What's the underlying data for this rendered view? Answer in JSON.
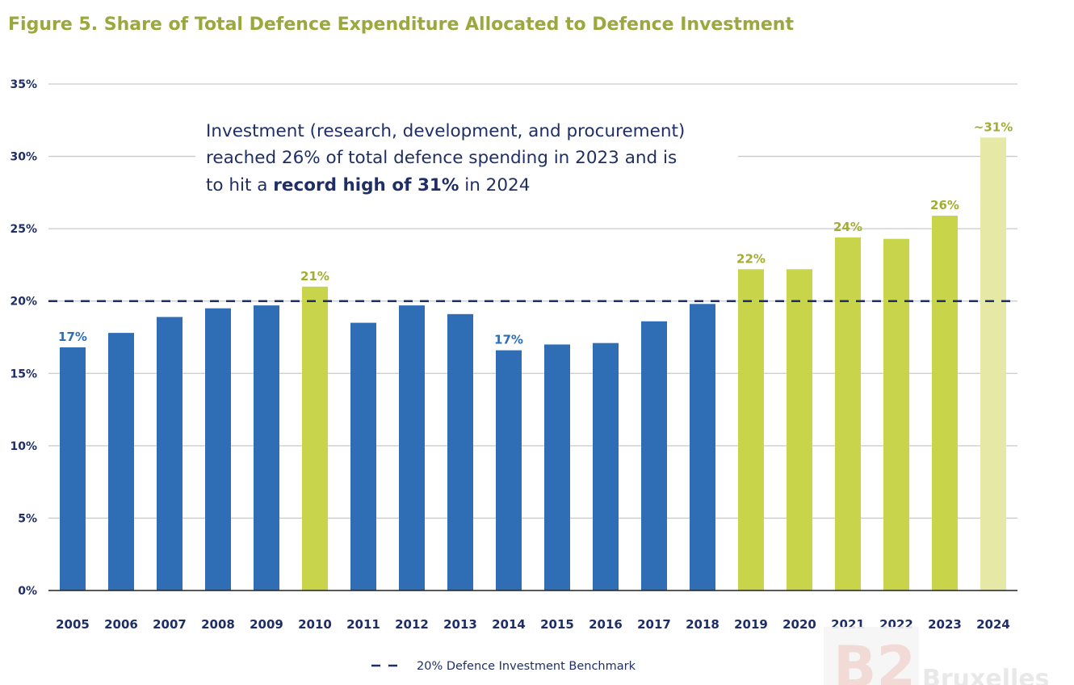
{
  "chart_data": {
    "type": "bar",
    "title": "Figure 5. Share of Total Defence Expenditure Allocated to Defence Investment",
    "categories": [
      "2005",
      "2006",
      "2007",
      "2008",
      "2009",
      "2010",
      "2011",
      "2012",
      "2013",
      "2014",
      "2015",
      "2016",
      "2017",
      "2018",
      "2019",
      "2020",
      "2021",
      "2022",
      "2023",
      "2024"
    ],
    "values": [
      16.8,
      17.8,
      18.9,
      19.5,
      19.7,
      21.0,
      18.5,
      19.7,
      19.1,
      16.6,
      17.0,
      17.1,
      18.6,
      19.8,
      22.2,
      22.2,
      24.4,
      24.3,
      25.9,
      31.3
    ],
    "bar_groups": [
      "blue",
      "blue",
      "blue",
      "blue",
      "blue",
      "lime",
      "blue",
      "blue",
      "blue",
      "blue",
      "blue",
      "blue",
      "blue",
      "blue",
      "lime",
      "lime",
      "lime",
      "lime",
      "lime",
      "pale"
    ],
    "data_labels": [
      "17%",
      "",
      "",
      "",
      "",
      "21%",
      "",
      "",
      "",
      "17%",
      "",
      "",
      "",
      "",
      "22%",
      "",
      "24%",
      "",
      "26%",
      "~31%"
    ],
    "y_ticks": [
      "0%",
      "5%",
      "10%",
      "15%",
      "20%",
      "25%",
      "30%",
      "35%"
    ],
    "ylim": [
      0,
      35
    ],
    "xlabel": "",
    "ylabel": "",
    "grid": true,
    "benchmark": {
      "value": 20,
      "label": "20% Defence Investment Benchmark"
    },
    "legend_position": "bottom-center",
    "colors": {
      "blue": "#2f6db5",
      "lime": "#c8d44a",
      "pale": "#e6e8a6",
      "benchmark": "#1f2f66",
      "grid": "#c9c9c9",
      "title": "#9aa83c",
      "text": "#1f2f66"
    }
  },
  "annotation": {
    "line1": "Investment (research, development, and procurement)",
    "line2": "reached 26% of total defence spending in 2023 and is",
    "line3_pre": "to hit a ",
    "line3_bold": "record high of 31%",
    "line3_post": " in 2024"
  },
  "watermark": {
    "mark": "B2",
    "text": "Bruxelles"
  }
}
